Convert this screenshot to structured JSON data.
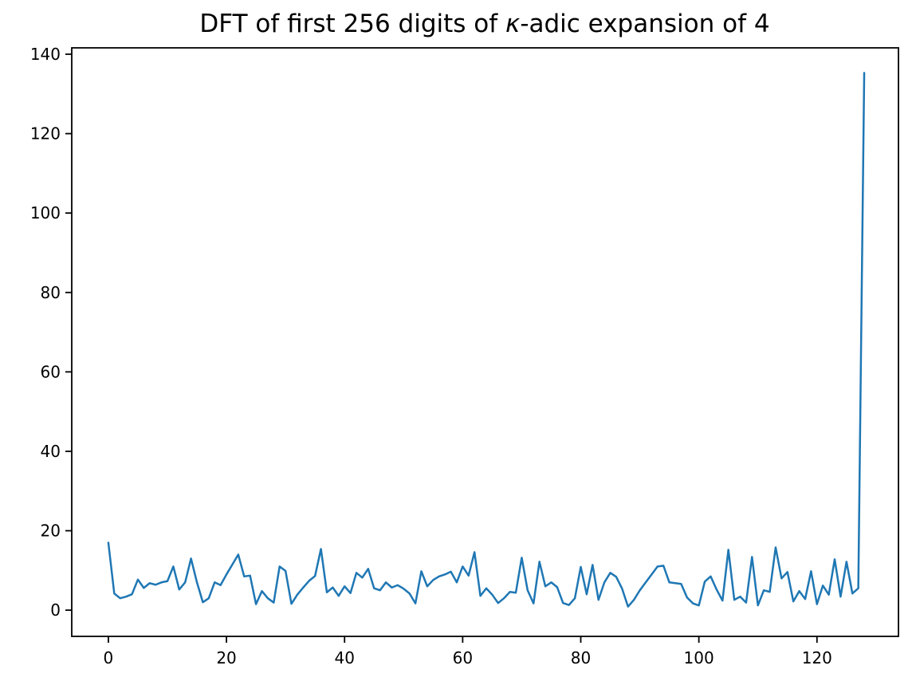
{
  "figure": {
    "background": "#ffffff",
    "title_prefix": "DFT of first 256 digits of ",
    "title_kappa": "κ",
    "title_suffix": "-adic expansion of 4"
  },
  "chart_data": {
    "type": "line",
    "title": "DFT of first 256 digits of κ-adic expansion of 4",
    "xlabel": "",
    "ylabel": "",
    "legend": null,
    "grid": false,
    "line_color": "#1f77b4",
    "axis_color": "#000000",
    "x_ticks": [
      0,
      20,
      40,
      60,
      80,
      100,
      120
    ],
    "y_ticks": [
      0,
      20,
      40,
      60,
      80,
      100,
      120,
      140
    ],
    "xlim": [
      -6.2,
      133.8
    ],
    "ylim": [
      -6.6,
      141.6
    ],
    "n_points": 129,
    "x_start": 0,
    "x_step": 1,
    "values": [
      17.0,
      4.2,
      3.0,
      3.4,
      4.0,
      7.7,
      5.6,
      6.8,
      6.4,
      7.0,
      7.3,
      11.0,
      5.2,
      7.0,
      13.0,
      7.0,
      2.0,
      3.0,
      7.0,
      6.3,
      9.0,
      11.5,
      14.0,
      8.5,
      8.7,
      1.5,
      4.8,
      3.0,
      1.9,
      11.0,
      9.9,
      1.6,
      3.9,
      5.7,
      7.4,
      8.6,
      15.4,
      4.5,
      5.7,
      3.6,
      6.0,
      4.3,
      9.4,
      8.2,
      10.4,
      5.5,
      5.0,
      7.0,
      5.7,
      6.3,
      5.4,
      4.2,
      1.7,
      9.8,
      6.0,
      7.6,
      8.5,
      9.0,
      9.7,
      7.0,
      11.0,
      8.7,
      14.6,
      3.6,
      5.5,
      3.9,
      1.8,
      3.0,
      4.6,
      4.4,
      13.2,
      5.0,
      1.7,
      12.2,
      6.0,
      7.0,
      5.8,
      1.8,
      1.3,
      3.0,
      10.9,
      4.0,
      11.4,
      2.6,
      7.0,
      9.4,
      8.4,
      5.4,
      0.9,
      2.6,
      5.0,
      7.0,
      9.0,
      11.0,
      11.2,
      7.0,
      6.8,
      6.6,
      3.2,
      1.7,
      1.2,
      7.2,
      8.5,
      5.2,
      2.4,
      15.2,
      2.6,
      3.4,
      1.9,
      13.4,
      1.2,
      5.0,
      4.6,
      15.8,
      8.0,
      9.6,
      2.2,
      4.8,
      2.8,
      9.8,
      1.5,
      6.2,
      3.9,
      12.8,
      3.4,
      12.2,
      4.2,
      5.5,
      135.3
    ]
  }
}
